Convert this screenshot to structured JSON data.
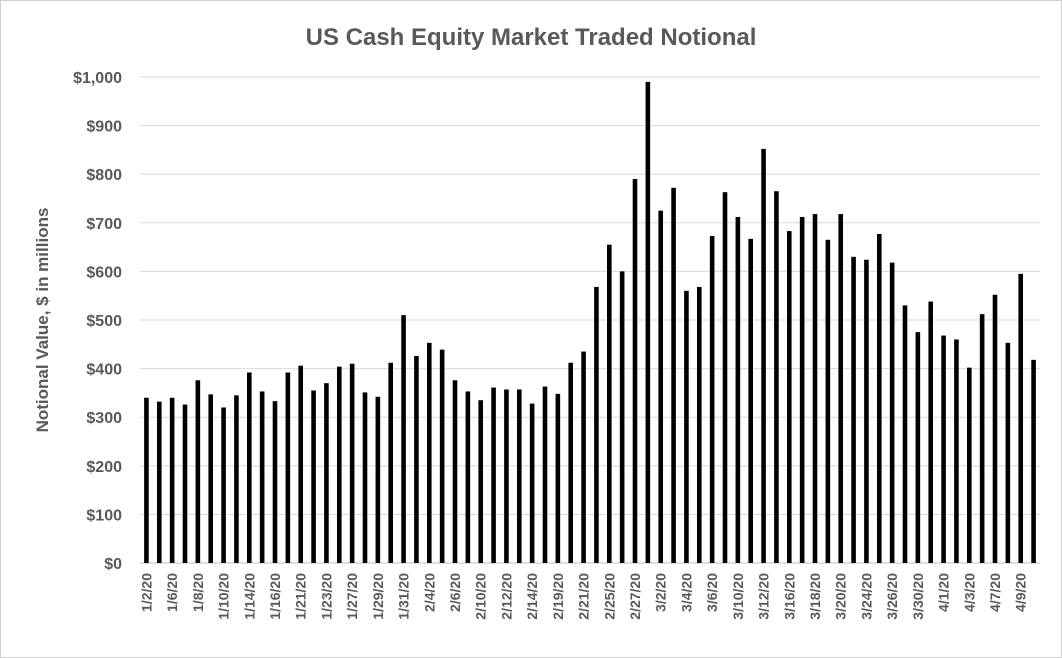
{
  "chart_data": {
    "type": "bar",
    "title": "US Cash Equity Market Traded Notional",
    "y_label": "Notional Value, $ in millions",
    "categories": [
      "1/2/20",
      null,
      "1/6/20",
      null,
      "1/8/20",
      null,
      "1/10/20",
      null,
      "1/14/20",
      null,
      "1/16/20",
      null,
      "1/21/20",
      null,
      "1/23/20",
      null,
      "1/27/20",
      null,
      "1/29/20",
      null,
      "1/31/20",
      null,
      "2/4/20",
      null,
      "2/6/20",
      null,
      "2/10/20",
      null,
      "2/12/20",
      null,
      "2/14/20",
      null,
      "2/19/20",
      null,
      "2/21/20",
      null,
      "2/25/20",
      null,
      "2/27/20",
      null,
      "3/2/20",
      null,
      "3/4/20",
      null,
      "3/6/20",
      null,
      "3/10/20",
      null,
      "3/12/20",
      null,
      "3/16/20",
      null,
      "3/18/20",
      null,
      "3/20/20",
      null,
      "3/24/20",
      null,
      "3/26/20",
      null,
      "3/30/20",
      null,
      "4/1/20",
      null,
      "4/3/20",
      null,
      "4/7/20",
      null,
      "4/9/20",
      null
    ],
    "values": [
      340,
      332,
      340,
      326,
      376,
      347,
      320,
      345,
      392,
      353,
      333,
      392,
      406,
      355,
      370,
      404,
      410,
      351,
      342,
      412,
      510,
      426,
      453,
      439,
      376,
      353,
      335,
      361,
      357,
      357,
      328,
      363,
      348,
      412,
      435,
      568,
      655,
      600,
      790,
      990,
      725,
      772,
      560,
      568,
      673,
      763,
      712,
      667,
      852,
      765,
      683,
      712,
      718,
      665,
      718,
      630,
      624,
      677,
      618,
      530,
      475,
      538,
      468,
      460,
      402,
      512,
      552,
      453,
      595,
      418
    ],
    "color": "#000000",
    "ylim": [
      0,
      1000
    ],
    "yticks": [
      {
        "value": 0,
        "label": "$0"
      },
      {
        "value": 100,
        "label": "$100"
      },
      {
        "value": 200,
        "label": "$200"
      },
      {
        "value": 300,
        "label": "$300"
      },
      {
        "value": 400,
        "label": "$400"
      },
      {
        "value": 500,
        "label": "$500"
      },
      {
        "value": 600,
        "label": "$600"
      },
      {
        "value": 700,
        "label": "$700"
      },
      {
        "value": 800,
        "label": "$800"
      },
      {
        "value": 900,
        "label": "$900"
      },
      {
        "value": 1000,
        "label": "$1,000"
      }
    ],
    "grid": true
  }
}
